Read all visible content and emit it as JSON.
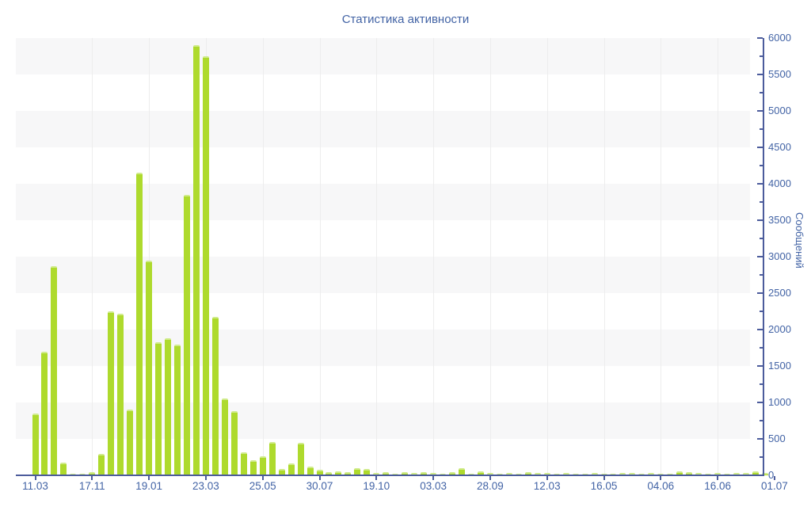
{
  "title": "Статистика активности",
  "colors": {
    "bar": "#aeda2d",
    "bar_top_highlight": "#d0eb8c",
    "axis_line": "#4c5c9c",
    "label_text": "#4263a5",
    "stripe_band": "#f7f7f8",
    "vertical_gridline": "#ededed"
  },
  "chart_data": {
    "type": "bar",
    "title": "Статистика активности",
    "xlabel": "",
    "ylabel": "Сообщений",
    "ylim": [
      0,
      6000
    ],
    "y_major_ticks": [
      0,
      500,
      1000,
      1500,
      2000,
      2500,
      3000,
      3500,
      4000,
      4500,
      5000,
      5500,
      6000
    ],
    "y_minor_tick_interval": 250,
    "legend_position": "none",
    "grid": "alternating horizontal gray bands every 500 units; faint vertical lines at labeled x ticks",
    "x_tick_labels": [
      "11.03",
      "17.11",
      "19.01",
      "23.03",
      "25.05",
      "30.07",
      "19.10",
      "03.03",
      "28.09",
      "12.03",
      "16.05",
      "04.06",
      "16.06",
      "01.07"
    ],
    "bars_per_tick_interval": 6,
    "values": [
      850,
      1700,
      2870,
      170,
      25,
      20,
      45,
      290,
      2250,
      2220,
      905,
      4150,
      2950,
      1825,
      1880,
      1795,
      3850,
      5900,
      5750,
      2170,
      1050,
      880,
      315,
      210,
      260,
      460,
      90,
      160,
      450,
      115,
      80,
      40,
      55,
      45,
      100,
      90,
      35,
      45,
      25,
      45,
      30,
      45,
      30,
      25,
      40,
      100,
      25,
      50,
      30,
      25,
      30,
      25,
      45,
      35,
      30,
      25,
      30,
      25,
      25,
      30,
      25,
      25,
      30,
      30,
      25,
      30,
      25,
      25,
      55,
      40,
      30,
      25,
      30,
      25,
      30,
      30,
      55,
      35
    ]
  }
}
